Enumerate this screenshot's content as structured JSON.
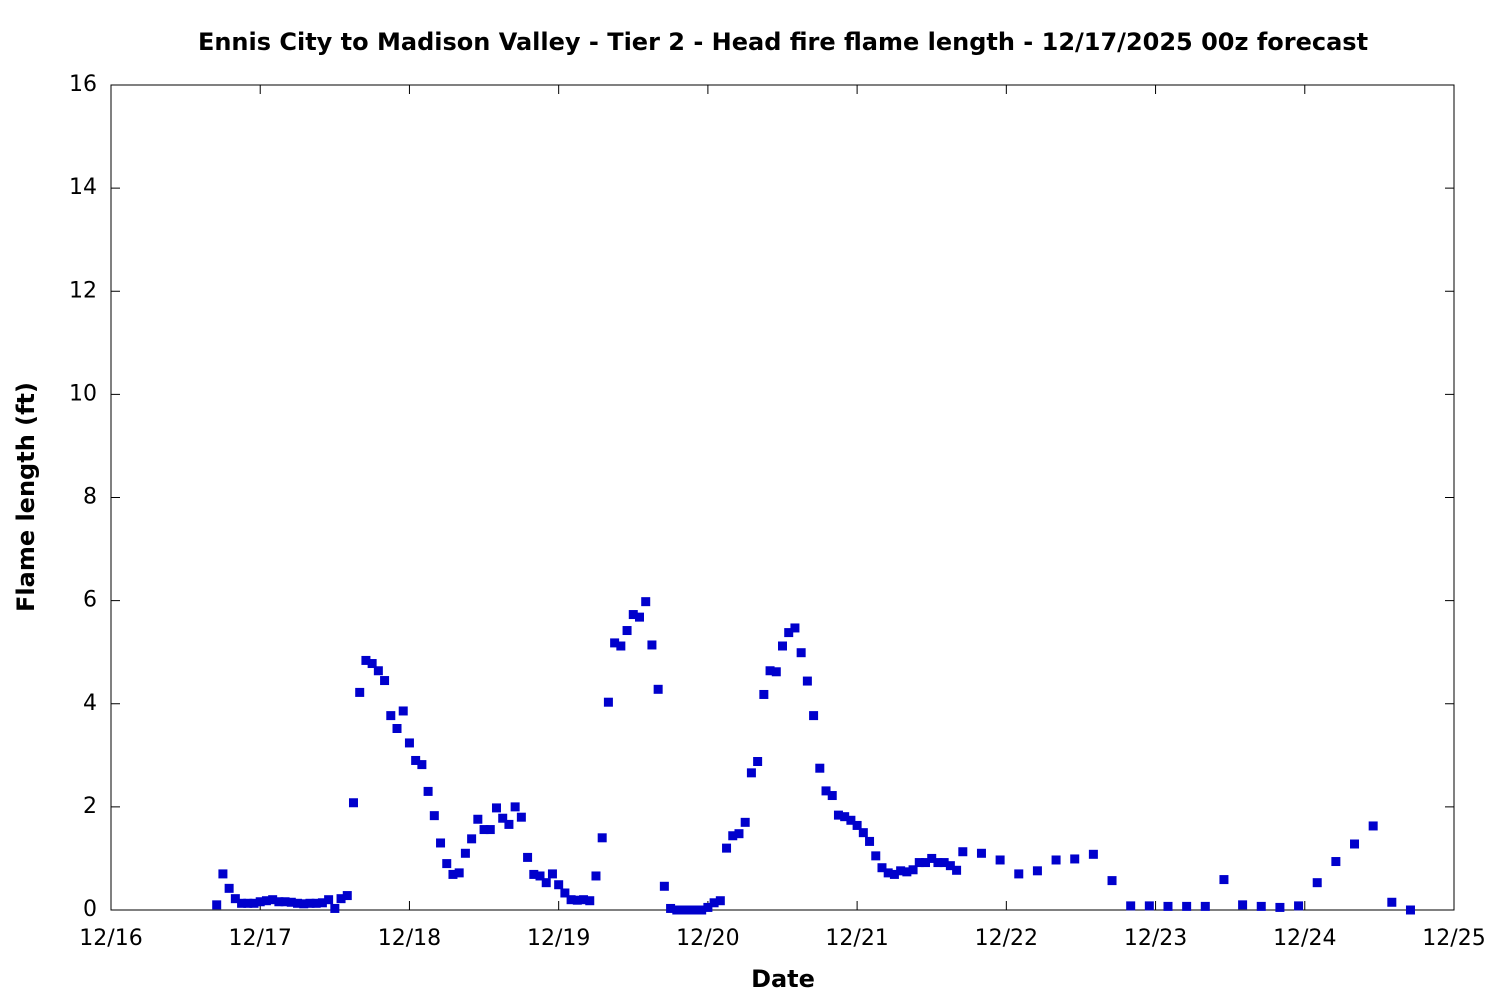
{
  "chart_data": {
    "type": "scatter",
    "title": "Ennis City to Madison Valley - Tier 2 - Head fire flame length - 12/17/2025 00z forecast",
    "xlabel": "Date",
    "ylabel": "Flame length (ft)",
    "xlim": [
      0,
      216
    ],
    "ylim": [
      0,
      16
    ],
    "xticks": [
      {
        "value": 0,
        "label": "12/16"
      },
      {
        "value": 24,
        "label": "12/17"
      },
      {
        "value": 48,
        "label": "12/18"
      },
      {
        "value": 72,
        "label": "12/19"
      },
      {
        "value": 96,
        "label": "12/20"
      },
      {
        "value": 120,
        "label": "12/21"
      },
      {
        "value": 144,
        "label": "12/22"
      },
      {
        "value": 168,
        "label": "12/23"
      },
      {
        "value": 192,
        "label": "12/24"
      },
      {
        "value": 216,
        "label": "12/25"
      }
    ],
    "yticks": [
      0,
      2,
      4,
      6,
      8,
      10,
      12,
      14,
      16
    ],
    "grid": false,
    "series": [
      {
        "color": "#0000cc",
        "x": [
          17,
          18,
          19,
          20,
          21,
          22,
          23,
          24,
          25,
          26,
          27,
          28,
          29,
          30,
          31,
          32,
          33,
          34,
          35,
          36,
          37,
          38,
          39,
          40,
          41,
          42,
          43,
          44,
          45,
          46,
          47,
          48,
          49,
          50,
          51,
          52,
          53,
          54,
          55,
          56,
          57,
          58,
          59,
          60,
          61,
          62,
          63,
          64,
          65,
          66,
          67,
          68,
          69,
          70,
          71,
          72,
          73,
          74,
          75,
          76,
          77,
          78,
          79,
          80,
          81,
          82,
          83,
          84,
          85,
          86,
          87,
          88,
          89,
          90,
          91,
          92,
          93,
          94,
          95,
          96,
          97,
          98,
          99,
          100,
          101,
          102,
          103,
          104,
          105,
          106,
          107,
          108,
          109,
          110,
          111,
          112,
          113,
          114,
          115,
          116,
          117,
          118,
          119,
          120,
          121,
          122,
          123,
          124,
          125,
          126,
          127,
          128,
          129,
          130,
          131,
          132,
          133,
          134,
          135,
          136,
          137,
          140,
          143,
          146,
          149,
          152,
          155,
          158,
          161,
          164,
          167,
          170,
          173,
          176,
          179,
          182,
          185,
          188,
          191,
          194,
          197,
          200,
          203,
          206,
          209
        ],
        "values": [
          0.1,
          0.7,
          0.42,
          0.22,
          0.13,
          0.13,
          0.13,
          0.16,
          0.18,
          0.2,
          0.16,
          0.16,
          0.15,
          0.13,
          0.12,
          0.13,
          0.13,
          0.14,
          0.2,
          0.03,
          0.22,
          0.28,
          2.08,
          4.22,
          4.84,
          4.78,
          4.64,
          4.45,
          3.77,
          3.52,
          3.86,
          3.24,
          2.9,
          2.82,
          2.3,
          1.83,
          1.3,
          0.9,
          0.69,
          0.72,
          1.1,
          1.38,
          1.76,
          1.56,
          1.56,
          1.98,
          1.78,
          1.66,
          2.0,
          1.8,
          1.02,
          0.69,
          0.66,
          0.53,
          0.7,
          0.49,
          0.33,
          0.2,
          0.19,
          0.2,
          0.18,
          0.66,
          1.4,
          4.03,
          5.18,
          5.12,
          5.42,
          5.73,
          5.68,
          5.98,
          5.14,
          4.28,
          0.46,
          0.03,
          0.0,
          0.0,
          0.0,
          0.0,
          0.0,
          0.05,
          0.14,
          0.18,
          1.2,
          1.44,
          1.48,
          1.7,
          2.66,
          2.88,
          4.18,
          4.64,
          4.62,
          5.12,
          5.38,
          5.47,
          4.99,
          4.44,
          3.77,
          2.75,
          2.31,
          2.22,
          1.84,
          1.81,
          1.74,
          1.64,
          1.5,
          1.33,
          1.05,
          0.82,
          0.72,
          0.69,
          0.76,
          0.74,
          0.78,
          0.92,
          0.92,
          1.0,
          0.92,
          0.92,
          0.86,
          0.77,
          1.13,
          1.1,
          0.97,
          0.7,
          0.76,
          0.97,
          0.99,
          1.08,
          0.57,
          0.08,
          0.08,
          0.07,
          0.07,
          0.07,
          0.59,
          0.1,
          0.07,
          0.05,
          0.08,
          0.53,
          0.94,
          1.28,
          1.63,
          0.15,
          0.0
        ]
      }
    ]
  }
}
